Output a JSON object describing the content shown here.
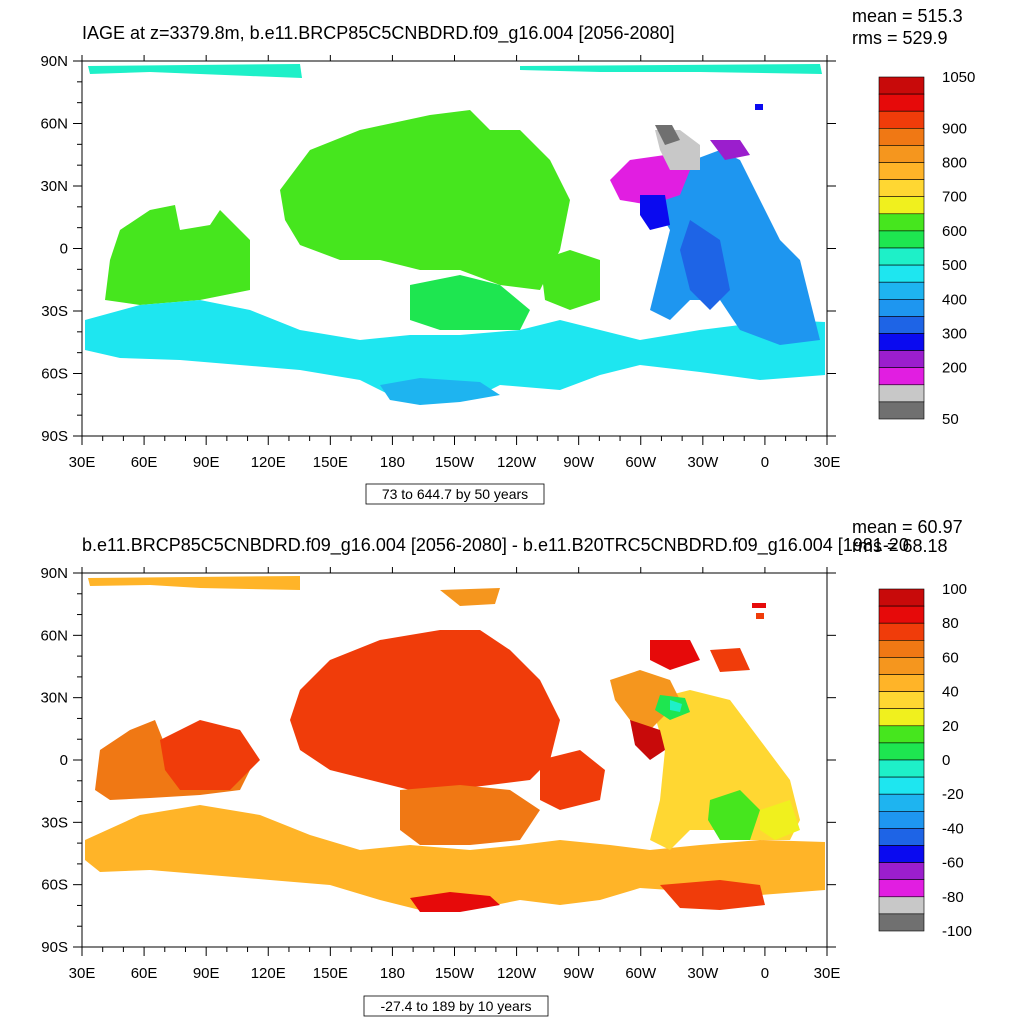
{
  "colors": {
    "iage": [
      "#707070",
      "#c8c8c8",
      "#e11ee1",
      "#9b1ecd",
      "#0a0af0",
      "#1e64e6",
      "#1e96f0",
      "#1eb4f0",
      "#1ee6f0",
      "#1ef0c8",
      "#1ee650",
      "#46e61e",
      "#f0f01e",
      "#ffd732",
      "#ffb428",
      "#f5961e",
      "#f07814",
      "#f03c0a",
      "#e60a0a",
      "#c80a0a"
    ],
    "diff": [
      "#707070",
      "#c8c8c8",
      "#e11ee1",
      "#9b1ecd",
      "#0a0af0",
      "#1e64e6",
      "#1e96f0",
      "#1eb4f0",
      "#1ee6f0",
      "#1ef0c8",
      "#1ee650",
      "#46e61e",
      "#f0f01e",
      "#ffd732",
      "#ffb428",
      "#f5961e",
      "#f07814",
      "#f03c0a",
      "#e60a0a",
      "#c80a0a"
    ]
  },
  "chart_data": [
    {
      "type": "heatmap",
      "title": "IAGE at z=3379.8m, b.e11.BRCP85C5CNBDRD.f09_g16.004 [2056-2080]",
      "stats": {
        "mean": "mean = 515.3",
        "rms": "rms = 529.9"
      },
      "contour_info": "73 to 644.7 by 50 years",
      "xticks": [
        "30E",
        "60E",
        "90E",
        "120E",
        "150E",
        "180",
        "150W",
        "120W",
        "90W",
        "60W",
        "30W",
        "0",
        "30E"
      ],
      "yticks": [
        "90N",
        "60N",
        "30N",
        "0",
        "30S",
        "60S",
        "90S"
      ],
      "colorbar_labels": [
        "1050",
        "900",
        "800",
        "700",
        "600",
        "500",
        "400",
        "300",
        "200",
        "50"
      ],
      "colorbar_label_positions": [
        0,
        3,
        5,
        7,
        9,
        11,
        13,
        15,
        17,
        20
      ]
    },
    {
      "type": "heatmap",
      "title": "b.e11.BRCP85C5CNBDRD.f09_g16.004 [2056-2080] - b.e11.B20TRC5CNBDRD.f09_g16.004 [1981-20",
      "stats": {
        "mean": "mean = 60.97",
        "rms": "rms = 68.18"
      },
      "contour_info": "-27.4 to 189 by 10 years",
      "xticks": [
        "30E",
        "60E",
        "90E",
        "120E",
        "150E",
        "180",
        "150W",
        "120W",
        "90W",
        "60W",
        "30W",
        "0",
        "30E"
      ],
      "yticks": [
        "90N",
        "60N",
        "30N",
        "0",
        "30S",
        "60S",
        "90S"
      ],
      "colorbar_labels": [
        "100",
        "80",
        "60",
        "40",
        "20",
        "0",
        "-20",
        "-40",
        "-60",
        "-80",
        "-100"
      ],
      "colorbar_label_positions": [
        0,
        2,
        4,
        6,
        8,
        10,
        12,
        14,
        16,
        18,
        20
      ]
    }
  ]
}
